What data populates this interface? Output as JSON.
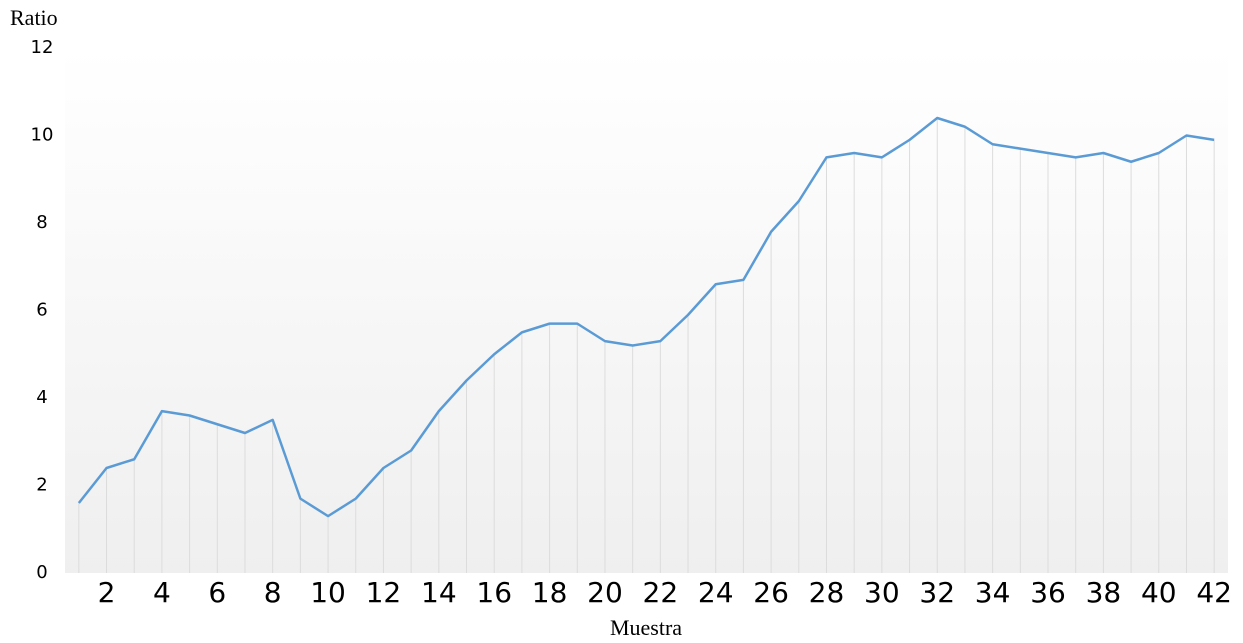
{
  "chart_data": {
    "type": "line",
    "y_label": "Ratio",
    "x_label": "Muestra",
    "x": [
      1,
      2,
      3,
      4,
      5,
      6,
      7,
      8,
      9,
      10,
      11,
      12,
      13,
      14,
      15,
      16,
      17,
      18,
      19,
      20,
      21,
      22,
      23,
      24,
      25,
      26,
      27,
      28,
      29,
      30,
      31,
      32,
      33,
      34,
      35,
      36,
      37,
      38,
      39,
      40,
      41,
      42
    ],
    "series": [
      {
        "name": "Ratio",
        "color": "#5b9bd5",
        "values": [
          1.6,
          2.4,
          2.6,
          3.7,
          3.6,
          3.4,
          3.2,
          3.5,
          1.7,
          1.3,
          1.7,
          2.4,
          2.8,
          3.7,
          4.4,
          5.0,
          5.5,
          5.7,
          5.7,
          5.3,
          5.2,
          5.3,
          5.9,
          6.6,
          6.7,
          7.8,
          8.5,
          9.5,
          9.6,
          9.5,
          9.9,
          10.4,
          10.2,
          9.8,
          9.7,
          9.6,
          9.5,
          9.6,
          9.4,
          9.6,
          10,
          9.9
        ]
      }
    ],
    "xlim": [
      0.5,
      42.5
    ],
    "xticks": [
      2,
      4,
      6,
      8,
      10,
      12,
      14,
      16,
      18,
      20,
      22,
      24,
      26,
      28,
      30,
      32,
      34,
      36,
      38,
      40,
      42
    ],
    "ylim": [
      0,
      12
    ],
    "yticks": [
      0,
      2,
      4,
      6,
      8,
      10,
      12
    ],
    "drop_lines": true
  }
}
